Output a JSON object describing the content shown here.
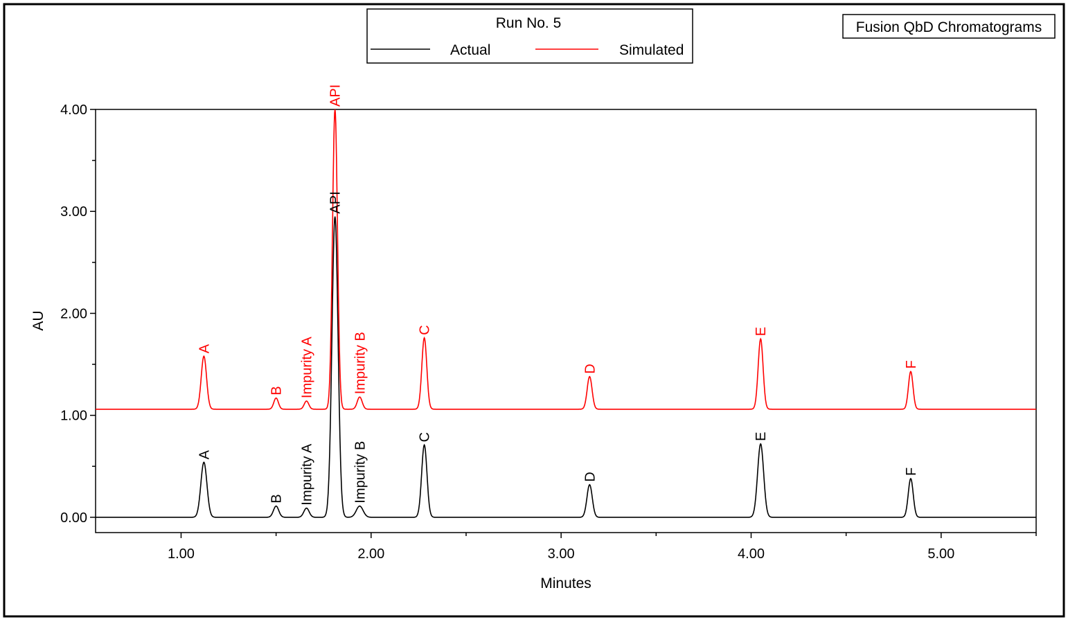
{
  "title_box": "Fusion QbD Chromatograms",
  "legend": {
    "title": "Run No. 5",
    "items": [
      {
        "label": "Actual",
        "color": "#000000"
      },
      {
        "label": "Simulated",
        "color": "#ff0000"
      }
    ]
  },
  "chart_data": {
    "type": "line",
    "xlabel": "Minutes",
    "ylabel": "AU",
    "xlim": [
      0.55,
      5.5
    ],
    "ylim": [
      -0.15,
      4.0
    ],
    "x_ticks": [
      {
        "value": 1.0,
        "label": "1.00"
      },
      {
        "value": 2.0,
        "label": "2.00"
      },
      {
        "value": 3.0,
        "label": "3.00"
      },
      {
        "value": 4.0,
        "label": "4.00"
      },
      {
        "value": 5.0,
        "label": "5.00"
      }
    ],
    "y_ticks": [
      {
        "value": 0.0,
        "label": "0.00"
      },
      {
        "value": 1.0,
        "label": "1.00"
      },
      {
        "value": 2.0,
        "label": "2.00"
      },
      {
        "value": 3.0,
        "label": "3.00"
      },
      {
        "value": 4.0,
        "label": "4.00"
      }
    ],
    "series": [
      {
        "name": "Actual",
        "color": "#000000",
        "baseline": 0.0,
        "peaks": [
          {
            "label": "A",
            "rt": 1.12,
            "height": 0.54,
            "width": 0.016
          },
          {
            "label": "B",
            "rt": 1.5,
            "height": 0.11,
            "width": 0.014
          },
          {
            "label": "Impurity A",
            "rt": 1.66,
            "height": 0.09,
            "width": 0.014
          },
          {
            "label": "API",
            "rt": 1.81,
            "height": 2.95,
            "width": 0.016
          },
          {
            "label": "Impurity B",
            "rt": 1.94,
            "height": 0.11,
            "width": 0.018
          },
          {
            "label": "C",
            "rt": 2.28,
            "height": 0.71,
            "width": 0.014
          },
          {
            "label": "D",
            "rt": 3.15,
            "height": 0.32,
            "width": 0.014
          },
          {
            "label": "E",
            "rt": 4.05,
            "height": 0.72,
            "width": 0.016
          },
          {
            "label": "F",
            "rt": 4.84,
            "height": 0.38,
            "width": 0.013
          }
        ]
      },
      {
        "name": "Simulated",
        "color": "#ff0000",
        "baseline": 1.06,
        "peaks": [
          {
            "label": "A",
            "rt": 1.12,
            "height": 0.52,
            "width": 0.014
          },
          {
            "label": "B",
            "rt": 1.5,
            "height": 0.11,
            "width": 0.012
          },
          {
            "label": "Impurity A",
            "rt": 1.66,
            "height": 0.08,
            "width": 0.012
          },
          {
            "label": "API",
            "rt": 1.81,
            "height": 2.94,
            "width": 0.013
          },
          {
            "label": "Impurity B",
            "rt": 1.94,
            "height": 0.12,
            "width": 0.013
          },
          {
            "label": "C",
            "rt": 2.28,
            "height": 0.7,
            "width": 0.013
          },
          {
            "label": "D",
            "rt": 3.15,
            "height": 0.32,
            "width": 0.013
          },
          {
            "label": "E",
            "rt": 4.05,
            "height": 0.69,
            "width": 0.013
          },
          {
            "label": "F",
            "rt": 4.84,
            "height": 0.37,
            "width": 0.012
          }
        ]
      }
    ]
  }
}
